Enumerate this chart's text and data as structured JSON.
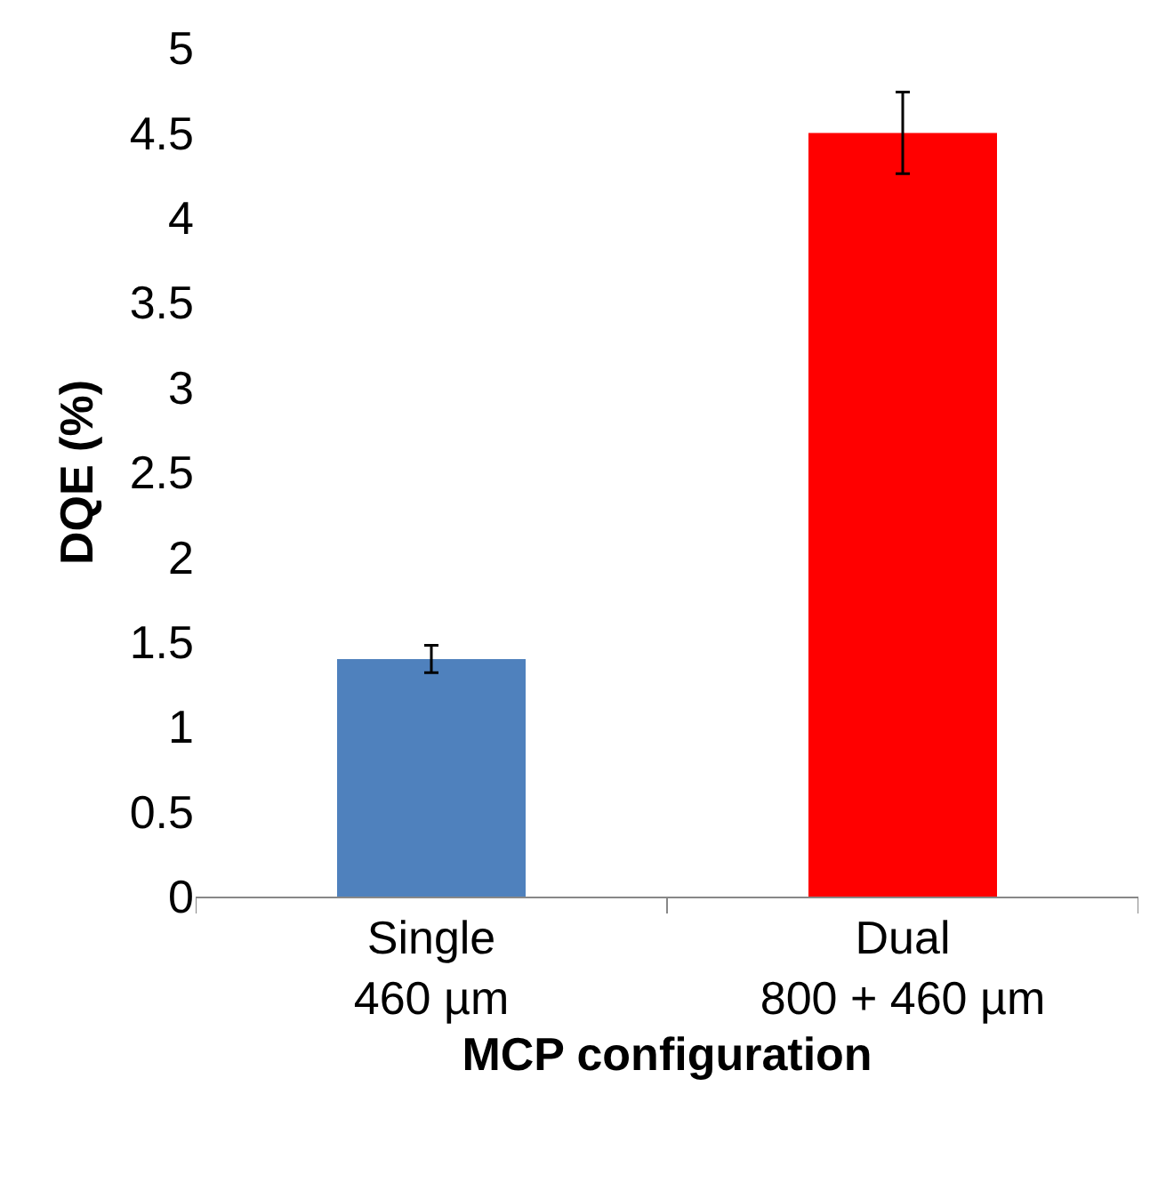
{
  "chart_data": {
    "type": "bar",
    "xlabel": "MCP configuration",
    "ylabel": "DQE (%)",
    "categories": [
      "Single\n460 µm",
      "Dual\n800 + 460 µm"
    ],
    "values": [
      1.4,
      4.5
    ],
    "colors": [
      "#4f81bd",
      "#ff0000"
    ],
    "errors": [
      0.08,
      0.24
    ],
    "ylim": [
      0,
      5
    ],
    "yticks": [
      0,
      0.5,
      1,
      1.5,
      2,
      2.5,
      3,
      3.5,
      4,
      4.5,
      5
    ]
  }
}
